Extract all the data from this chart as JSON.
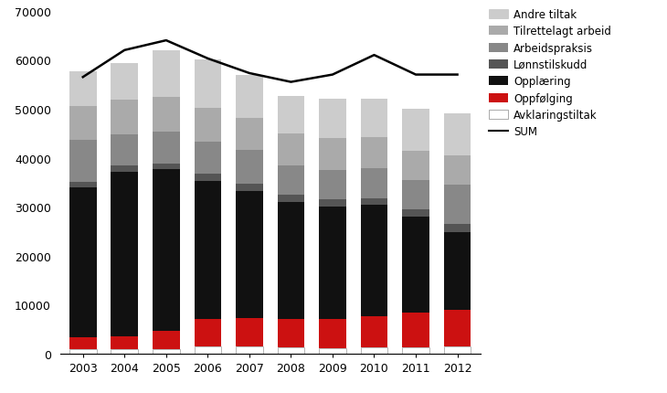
{
  "years": [
    2003,
    2004,
    2005,
    2006,
    2007,
    2008,
    2009,
    2010,
    2011,
    2012
  ],
  "avklaringstiltak": [
    900,
    900,
    900,
    1500,
    1400,
    1200,
    1100,
    1200,
    1300,
    1400
  ],
  "oppfolging": [
    2500,
    2700,
    3700,
    5500,
    5800,
    5800,
    6000,
    6500,
    7000,
    7500
  ],
  "opplaering": [
    30500,
    33600,
    33000,
    28300,
    26000,
    24000,
    23000,
    22700,
    19600,
    16000
  ],
  "lonnstilskudd": [
    1200,
    1300,
    1300,
    1400,
    1500,
    1400,
    1400,
    1400,
    1600,
    1600
  ],
  "arbeidspraksis": [
    8500,
    6300,
    6500,
    6500,
    7000,
    6000,
    6000,
    6000,
    6000,
    8000
  ],
  "tilrettelagt": [
    7000,
    7000,
    7000,
    7000,
    6500,
    6500,
    6500,
    6500,
    6000,
    6000
  ],
  "andre_tiltak": [
    7000,
    7500,
    9600,
    9800,
    8800,
    7700,
    8000,
    7700,
    8500,
    8500
  ],
  "sum_line": [
    56500,
    62000,
    64000,
    60300,
    57300,
    55500,
    57000,
    61000,
    57000,
    57000
  ],
  "colors": {
    "avklaringstiltak": "#ffffff",
    "oppfolging": "#cc1111",
    "opplaering": "#111111",
    "lonnstilskudd": "#555555",
    "arbeidspraksis": "#888888",
    "tilrettelagt": "#aaaaaa",
    "andre_tiltak": "#cccccc"
  },
  "ylim": [
    0,
    70000
  ],
  "yticks": [
    0,
    10000,
    20000,
    30000,
    40000,
    50000,
    60000,
    70000
  ],
  "bar_width": 0.65,
  "figsize": [
    7.3,
    4.31
  ],
  "dpi": 100
}
